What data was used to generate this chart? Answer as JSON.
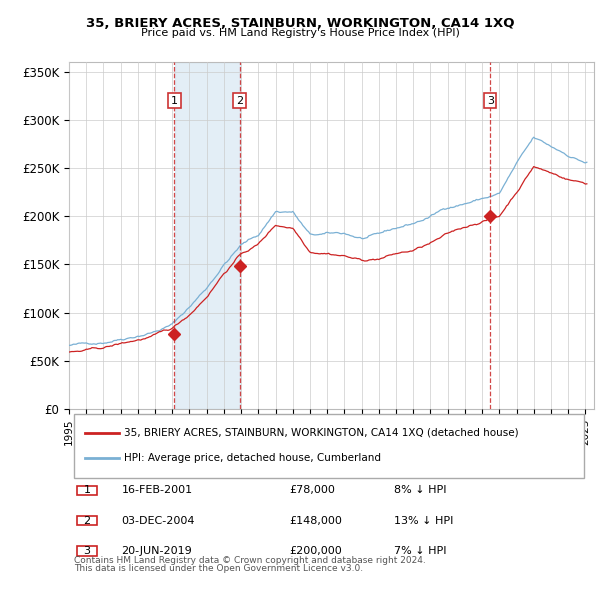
{
  "title": "35, BRIERY ACRES, STAINBURN, WORKINGTON, CA14 1XQ",
  "subtitle": "Price paid vs. HM Land Registry's House Price Index (HPI)",
  "ylabel_ticks": [
    "£0",
    "£50K",
    "£100K",
    "£150K",
    "£200K",
    "£250K",
    "£300K",
    "£350K"
  ],
  "ytick_values": [
    0,
    50000,
    100000,
    150000,
    200000,
    250000,
    300000,
    350000
  ],
  "ylim": [
    0,
    360000
  ],
  "xlim_start": 1995.0,
  "xlim_end": 2025.5,
  "hpi_line_color": "#7ab0d4",
  "price_line_color": "#cc2222",
  "vline_color": "#cc3333",
  "shade_color": "#cce0f0",
  "transactions": [
    {
      "label": "1",
      "date_label": "16-FEB-2001",
      "year": 2001.12,
      "price": 78000,
      "note": "8% ↓ HPI"
    },
    {
      "label": "2",
      "date_label": "03-DEC-2004",
      "year": 2004.92,
      "price": 148000,
      "note": "13% ↓ HPI"
    },
    {
      "label": "3",
      "date_label": "20-JUN-2019",
      "year": 2019.47,
      "price": 200000,
      "note": "7% ↓ HPI"
    }
  ],
  "legend_entries": [
    {
      "label": "35, BRIERY ACRES, STAINBURN, WORKINGTON, CA14 1XQ (detached house)",
      "color": "#cc2222"
    },
    {
      "label": "HPI: Average price, detached house, Cumberland",
      "color": "#7ab0d4"
    }
  ],
  "footer_lines": [
    "Contains HM Land Registry data © Crown copyright and database right 2024.",
    "This data is licensed under the Open Government Licence v3.0."
  ]
}
